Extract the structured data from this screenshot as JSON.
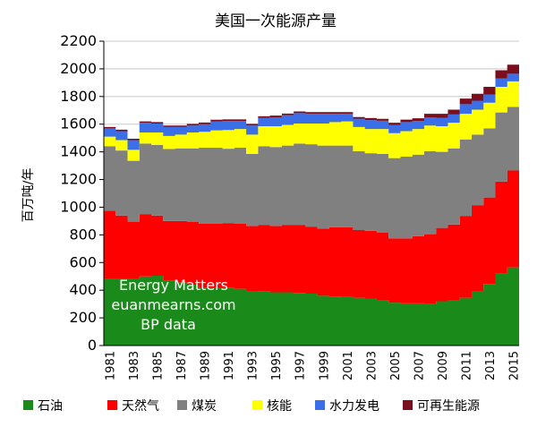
{
  "chart_data": {
    "type": "area",
    "title": "美国一次能源产量",
    "ylabel": "百万吨/年",
    "ylim": [
      0,
      2200
    ],
    "yticks": [
      0,
      200,
      400,
      600,
      800,
      1000,
      1200,
      1400,
      1600,
      1800,
      2000,
      2200
    ],
    "grid": true,
    "stacked": true,
    "legend_position": "bottom",
    "x": [
      1981,
      1982,
      1983,
      1984,
      1985,
      1986,
      1987,
      1988,
      1989,
      1990,
      1991,
      1992,
      1993,
      1994,
      1995,
      1996,
      1997,
      1998,
      1999,
      2000,
      2001,
      2002,
      2003,
      2004,
      2005,
      2006,
      2007,
      2008,
      2009,
      2010,
      2011,
      2012,
      2013,
      2014,
      2015
    ],
    "xtick_labels": [
      "1981",
      "1983",
      "1985",
      "1987",
      "1989",
      "1991",
      "1993",
      "1995",
      "1997",
      "1999",
      "2001",
      "2003",
      "2005",
      "2007",
      "2009",
      "2011",
      "2013",
      "2015"
    ],
    "annotations": [
      "Energy Matters",
      "euanmearns.com",
      "BP data"
    ],
    "series": [
      {
        "name": "石油",
        "color": "#1a8a1a",
        "values": [
          480,
          480,
          485,
          500,
          505,
          470,
          455,
          440,
          415,
          415,
          418,
          410,
          395,
          390,
          385,
          385,
          380,
          375,
          360,
          355,
          350,
          345,
          340,
          330,
          310,
          305,
          305,
          300,
          320,
          330,
          345,
          395,
          445,
          520,
          565
        ]
      },
      {
        "name": "天然气",
        "color": "#ff0000",
        "values": [
          495,
          460,
          410,
          450,
          435,
          430,
          445,
          455,
          465,
          465,
          465,
          470,
          470,
          480,
          480,
          485,
          490,
          485,
          485,
          500,
          505,
          490,
          490,
          485,
          465,
          470,
          485,
          505,
          530,
          545,
          590,
          620,
          625,
          665,
          700
        ]
      },
      {
        "name": "煤炭",
        "color": "#808080",
        "values": [
          465,
          470,
          440,
          510,
          510,
          520,
          525,
          530,
          550,
          550,
          540,
          550,
          520,
          570,
          570,
          575,
          590,
          595,
          600,
          590,
          590,
          570,
          560,
          570,
          580,
          590,
          590,
          600,
          550,
          550,
          555,
          510,
          500,
          500,
          460
        ]
      },
      {
        "name": "核能",
        "color": "#ffff00",
        "values": [
          70,
          75,
          80,
          80,
          90,
          95,
          100,
          115,
          115,
          125,
          135,
          135,
          140,
          145,
          150,
          150,
          145,
          150,
          160,
          170,
          175,
          175,
          175,
          180,
          180,
          185,
          185,
          185,
          185,
          185,
          185,
          180,
          185,
          185,
          185
        ]
      },
      {
        "name": "水力发电",
        "color": "#3a6fe8",
        "values": [
          60,
          65,
          70,
          70,
          65,
          65,
          55,
          50,
          55,
          65,
          65,
          58,
          65,
          60,
          65,
          70,
          75,
          70,
          70,
          60,
          55,
          60,
          65,
          60,
          60,
          65,
          58,
          60,
          60,
          60,
          70,
          65,
          60,
          60,
          55
        ]
      },
      {
        "name": "可再生能源",
        "color": "#7a0e1c",
        "values": [
          10,
          10,
          10,
          10,
          10,
          10,
          10,
          12,
          12,
          12,
          12,
          12,
          12,
          12,
          12,
          12,
          12,
          12,
          12,
          12,
          12,
          12,
          14,
          14,
          15,
          18,
          20,
          25,
          30,
          35,
          40,
          50,
          55,
          60,
          65
        ]
      }
    ]
  }
}
